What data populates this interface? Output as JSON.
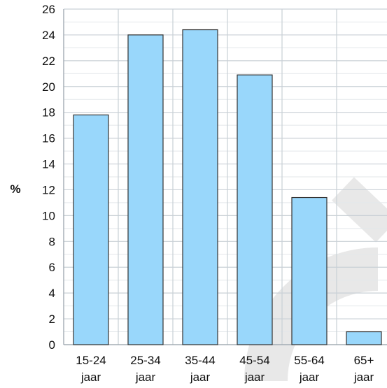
{
  "chart_data": {
    "type": "bar",
    "categories": [
      [
        "15-24",
        "jaar"
      ],
      [
        "25-34",
        "jaar"
      ],
      [
        "35-44",
        "jaar"
      ],
      [
        "45-54",
        "jaar"
      ],
      [
        "55-64",
        "jaar"
      ],
      [
        "65+",
        "jaar"
      ]
    ],
    "values": [
      17.8,
      24.0,
      24.4,
      20.9,
      11.4,
      1.0
    ],
    "ylabel": "%",
    "ylim": [
      0,
      26
    ],
    "yticks": [
      "0",
      "2",
      "4",
      "6",
      "8",
      "10",
      "12",
      "14",
      "16",
      "18",
      "20",
      "22",
      "24",
      "26"
    ],
    "grid": true,
    "colors": {
      "bar_fill": "#99d7fb",
      "bar_stroke": "#333333",
      "grid_major": "#c9d0d6",
      "grid_minor": "#e3e7ea",
      "watermark": "#e8e8e8"
    }
  }
}
